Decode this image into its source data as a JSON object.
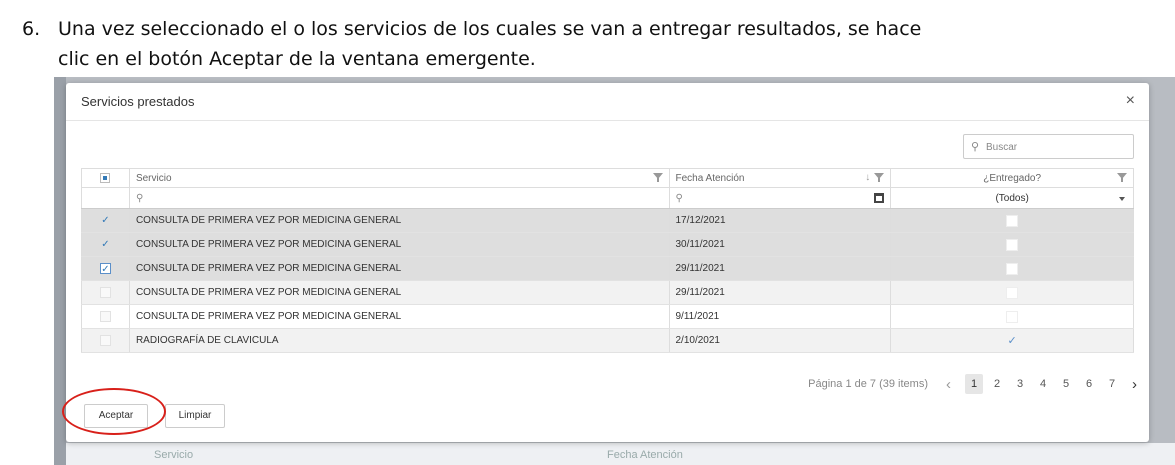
{
  "instruction": {
    "number": "6.",
    "line1": "Una vez seleccionado el o los servicios de los cuales se van a entregar resultados, se hace",
    "line2": "clic en el botón Aceptar de la ventana emergente."
  },
  "dialog": {
    "title": "Servicios prestados",
    "close_glyph": "×",
    "search_placeholder": "Buscar"
  },
  "table": {
    "columns": [
      "Servicio",
      "Fecha Atención",
      "¿Entregado?"
    ],
    "filter_dropdown_value": "(Todos)",
    "rows": [
      {
        "servicio": "CONSULTA DE PRIMERA VEZ POR MEDICINA GENERAL",
        "fecha": "17/12/2021",
        "selected": true,
        "entregado": false
      },
      {
        "servicio": "CONSULTA DE PRIMERA VEZ POR MEDICINA GENERAL",
        "fecha": "30/11/2021",
        "selected": true,
        "entregado": false
      },
      {
        "servicio": "CONSULTA DE PRIMERA VEZ POR MEDICINA GENERAL",
        "fecha": "29/11/2021",
        "selected": true,
        "entregado": false
      },
      {
        "servicio": "CONSULTA DE PRIMERA VEZ POR MEDICINA GENERAL",
        "fecha": "29/11/2021",
        "selected": false,
        "entregado": false
      },
      {
        "servicio": "CONSULTA DE PRIMERA VEZ POR MEDICINA GENERAL",
        "fecha": "9/11/2021",
        "selected": false,
        "entregado": false
      },
      {
        "servicio": "RADIOGRAFÍA DE CLAVICULA",
        "fecha": "2/10/2021",
        "selected": false,
        "entregado": true
      }
    ]
  },
  "pager": {
    "info": "Página 1 de 7 (39 items)",
    "pages": [
      "1",
      "2",
      "3",
      "4",
      "5",
      "6",
      "7"
    ],
    "current_page": "1",
    "prev_glyph": "‹",
    "next_glyph": "›"
  },
  "buttons": {
    "aceptar": "Aceptar",
    "limpiar": "Limpiar"
  },
  "background_ghost": {
    "col_servicio": "Servicio",
    "col_fecha": "Fecha Atención"
  },
  "colors": {
    "highlight_circle": "#d8201a",
    "accent": "#337ab7"
  }
}
